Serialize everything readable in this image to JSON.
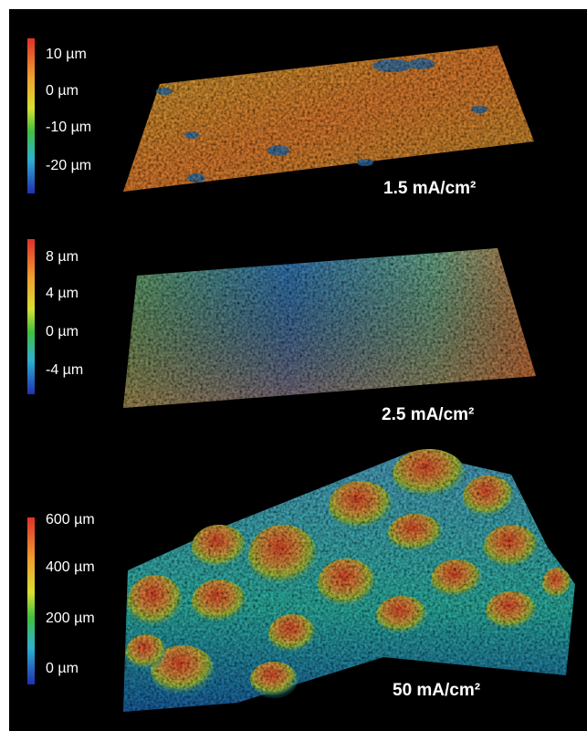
{
  "panels": [
    {
      "label": "1.5 mA/cm²",
      "colorbar_labels": [
        "10 µm",
        "0 µm",
        "-10 µm",
        "-20 µm"
      ]
    },
    {
      "label": "2.5 mA/cm²",
      "colorbar_labels": [
        "8 µm",
        "4 µm",
        "0 µm",
        "-4 µm"
      ]
    },
    {
      "label": "50 mA/cm²",
      "colorbar_labels": [
        "600 µm",
        "400 µm",
        "200 µm",
        "0 µm"
      ]
    }
  ]
}
